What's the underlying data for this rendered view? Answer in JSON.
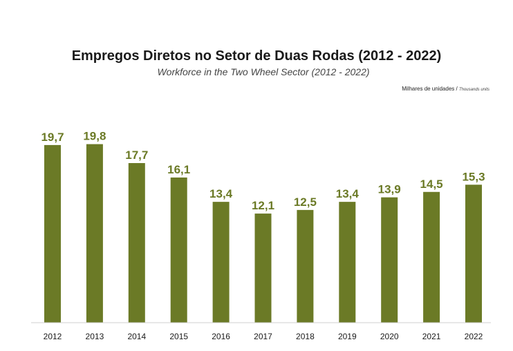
{
  "chart_data": {
    "type": "bar",
    "title": "Empregos Diretos no Setor de Duas Rodas (2012 - 2022)",
    "subtitle": "Workforce in the Two Wheel Sector (2012 - 2022)",
    "units_pt": "Milhares de unidades /",
    "units_en": "Thousands units",
    "categories": [
      "2012",
      "2013",
      "2014",
      "2015",
      "2016",
      "2017",
      "2018",
      "2019",
      "2020",
      "2021",
      "2022"
    ],
    "values": [
      19.7,
      19.8,
      17.7,
      16.1,
      13.4,
      12.1,
      12.5,
      13.4,
      13.9,
      14.5,
      15.3
    ],
    "value_labels": [
      "19,7",
      "19,8",
      "17,7",
      "16,1",
      "13,4",
      "12,1",
      "12,5",
      "13,4",
      "13,9",
      "14,5",
      "15,3"
    ],
    "xlabel": "",
    "ylabel": "",
    "ylim": [
      0,
      20
    ],
    "grid": false,
    "bar_color": "#6b7a26",
    "label_color": "#6b7a26"
  }
}
